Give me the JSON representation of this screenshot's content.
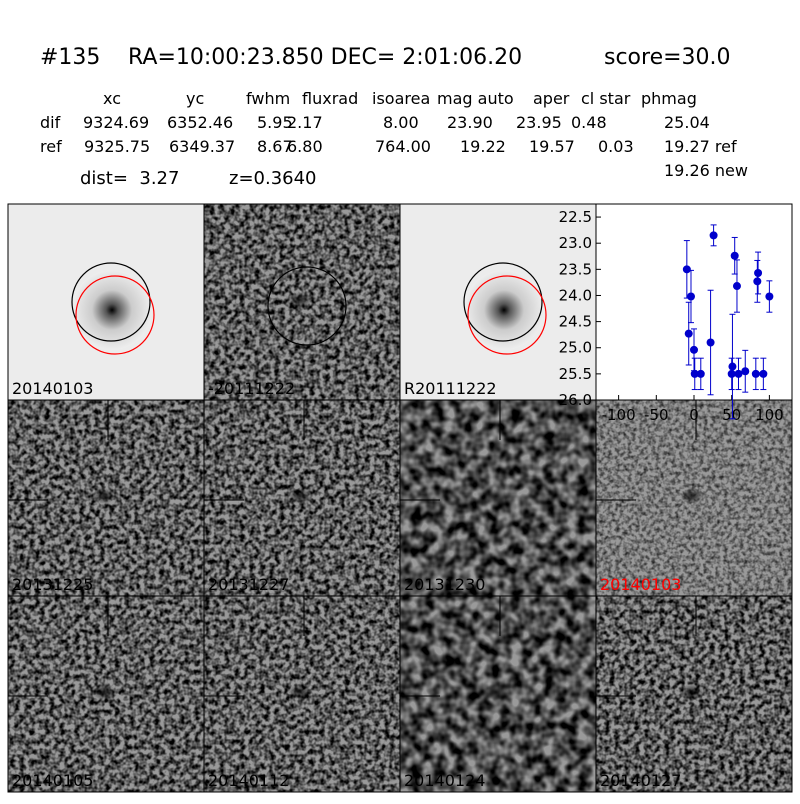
{
  "header": {
    "id": "#135",
    "coords": "RA=10:00:23.850 DEC= 2:01:06.20",
    "score": "score=30.0"
  },
  "table": {
    "columns": [
      "xc",
      "yc",
      "fwhm",
      "fluxrad",
      "isoarea",
      "mag auto",
      "aper",
      "cl star",
      "phmag"
    ],
    "rows": [
      [
        "dif",
        "9324.69",
        "6352.46",
        "5.95",
        "2.17",
        "8.00",
        "23.90",
        "23.95",
        "0.48",
        "25.04"
      ],
      [
        "ref",
        "9325.75",
        "6349.37",
        "8.67",
        "6.80",
        "764.00",
        "19.22",
        "19.57",
        "0.03",
        "19.27 ref"
      ]
    ],
    "extra": "19.26 new",
    "dist": "dist=  3.27",
    "z": "z=0.3640"
  },
  "panels": {
    "labels": [
      "20140103",
      "-20111222",
      "R20111222",
      "20131225",
      "20131227",
      "20131230",
      "20140103",
      "20140105",
      "20140112",
      "20140124",
      "20140127"
    ],
    "highlight_color": "#ff0000"
  },
  "chart_data": {
    "type": "scatter",
    "color": "#0000cc",
    "x": [
      -9.5,
      -7,
      -4,
      0,
      1,
      9,
      22,
      26,
      54,
      57,
      51,
      50,
      59,
      68,
      82,
      92,
      84,
      85,
      100
    ],
    "values": [
      23.5,
      24.73,
      24.02,
      25.04,
      25.5,
      25.5,
      24.9,
      22.85,
      23.24,
      23.82,
      25.36,
      25.5,
      25.5,
      25.45,
      25.5,
      25.5,
      23.73,
      23.57,
      24.02
    ],
    "errors": [
      0.55,
      0.6,
      0.5,
      0.4,
      0.3,
      0.3,
      1.0,
      0.2,
      0.35,
      0.5,
      1.0,
      0.3,
      0.3,
      0.4,
      0.3,
      0.3,
      0.4,
      0.4,
      0.3
    ],
    "xlim": [
      -130,
      130
    ],
    "ylim": [
      26.0,
      22.25
    ],
    "xticks": [
      -100,
      -50,
      0,
      50,
      100
    ],
    "yticks": [
      22.5,
      {
        "value": 23,
        "label": "23.0"
      },
      23.5,
      {
        "value": 24,
        "label": "24.0"
      },
      24.5,
      {
        "value": 25,
        "label": "25.0"
      },
      25.5,
      {
        "value": 26,
        "label": "26.0"
      }
    ]
  }
}
